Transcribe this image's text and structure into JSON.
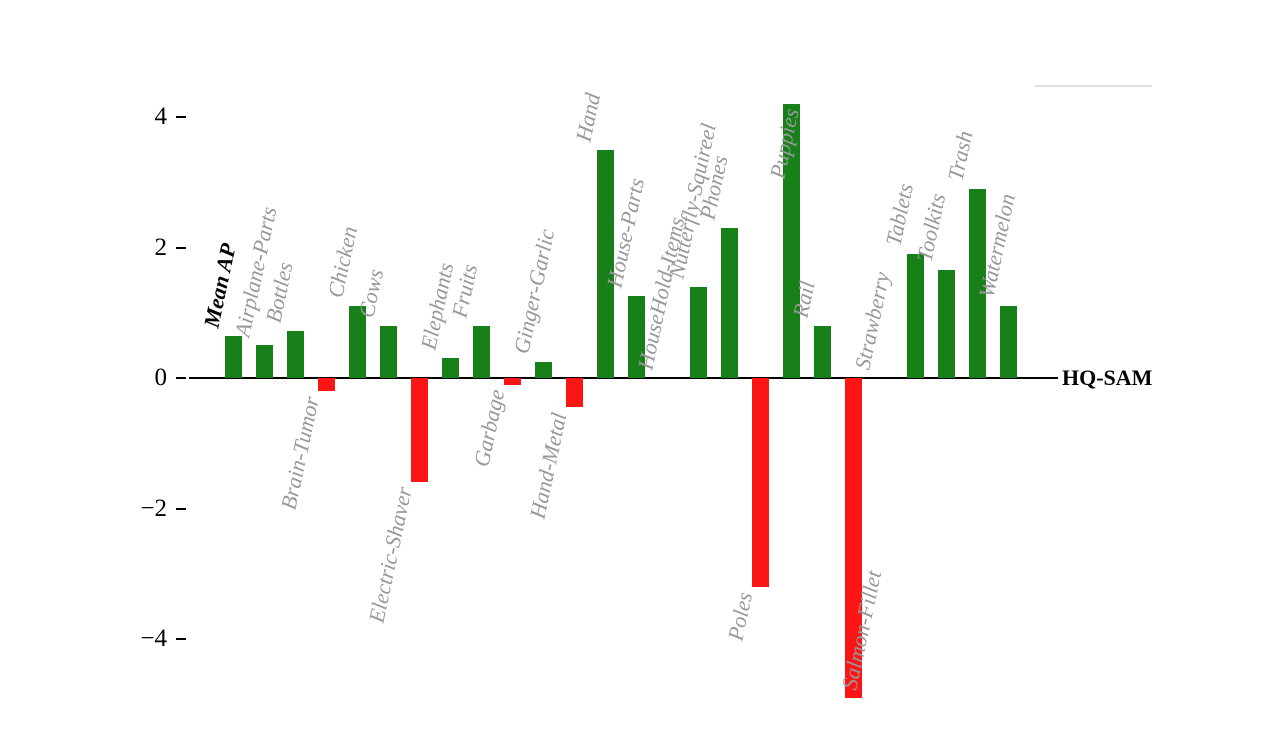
{
  "chart_data": {
    "type": "bar",
    "title": "",
    "xlabel": "",
    "ylabel": "",
    "grid": false,
    "legend_position": "none",
    "ylim": [
      -5.2,
      4.6
    ],
    "baseline": {
      "label": "HQ-SAM",
      "value": 0
    },
    "y_ticks": [
      {
        "value": 4,
        "label": "4"
      },
      {
        "value": 2,
        "label": "2"
      },
      {
        "value": 0,
        "label": "0"
      },
      {
        "value": -2,
        "label": "−2"
      },
      {
        "value": -4,
        "label": "−4"
      }
    ],
    "categories": [
      "Mean AP",
      "Airplane-Parts",
      "Bottles",
      "Brain-Tumor",
      "Chicken",
      "Cows",
      "Electric-Shaver",
      "Elephants",
      "Fruits",
      "Garbage",
      "Ginger-Garlic",
      "Hand-Metal",
      "Hand",
      "House-Parts",
      "HouseHold-Items",
      "Nutterfly-Squireel",
      "Phones",
      "Poles",
      "Puppies",
      "Rail",
      "Salmon-Fillet",
      "Strawberry",
      "Tablets",
      "Toolkits",
      "Trash",
      "Watermelon"
    ],
    "values": [
      0.65,
      0.5,
      0.72,
      -0.2,
      1.1,
      0.8,
      -1.6,
      0.3,
      0.8,
      -0.1,
      0.25,
      -0.45,
      3.5,
      1.25,
      0.0,
      1.4,
      2.3,
      -3.2,
      4.2,
      0.8,
      -4.9,
      0.0,
      1.9,
      1.65,
      2.9,
      1.1
    ],
    "positive_color": "#188018",
    "negative_color": "#fb1515",
    "label_color": "#97989c",
    "highlight_category": "Mean AP"
  }
}
